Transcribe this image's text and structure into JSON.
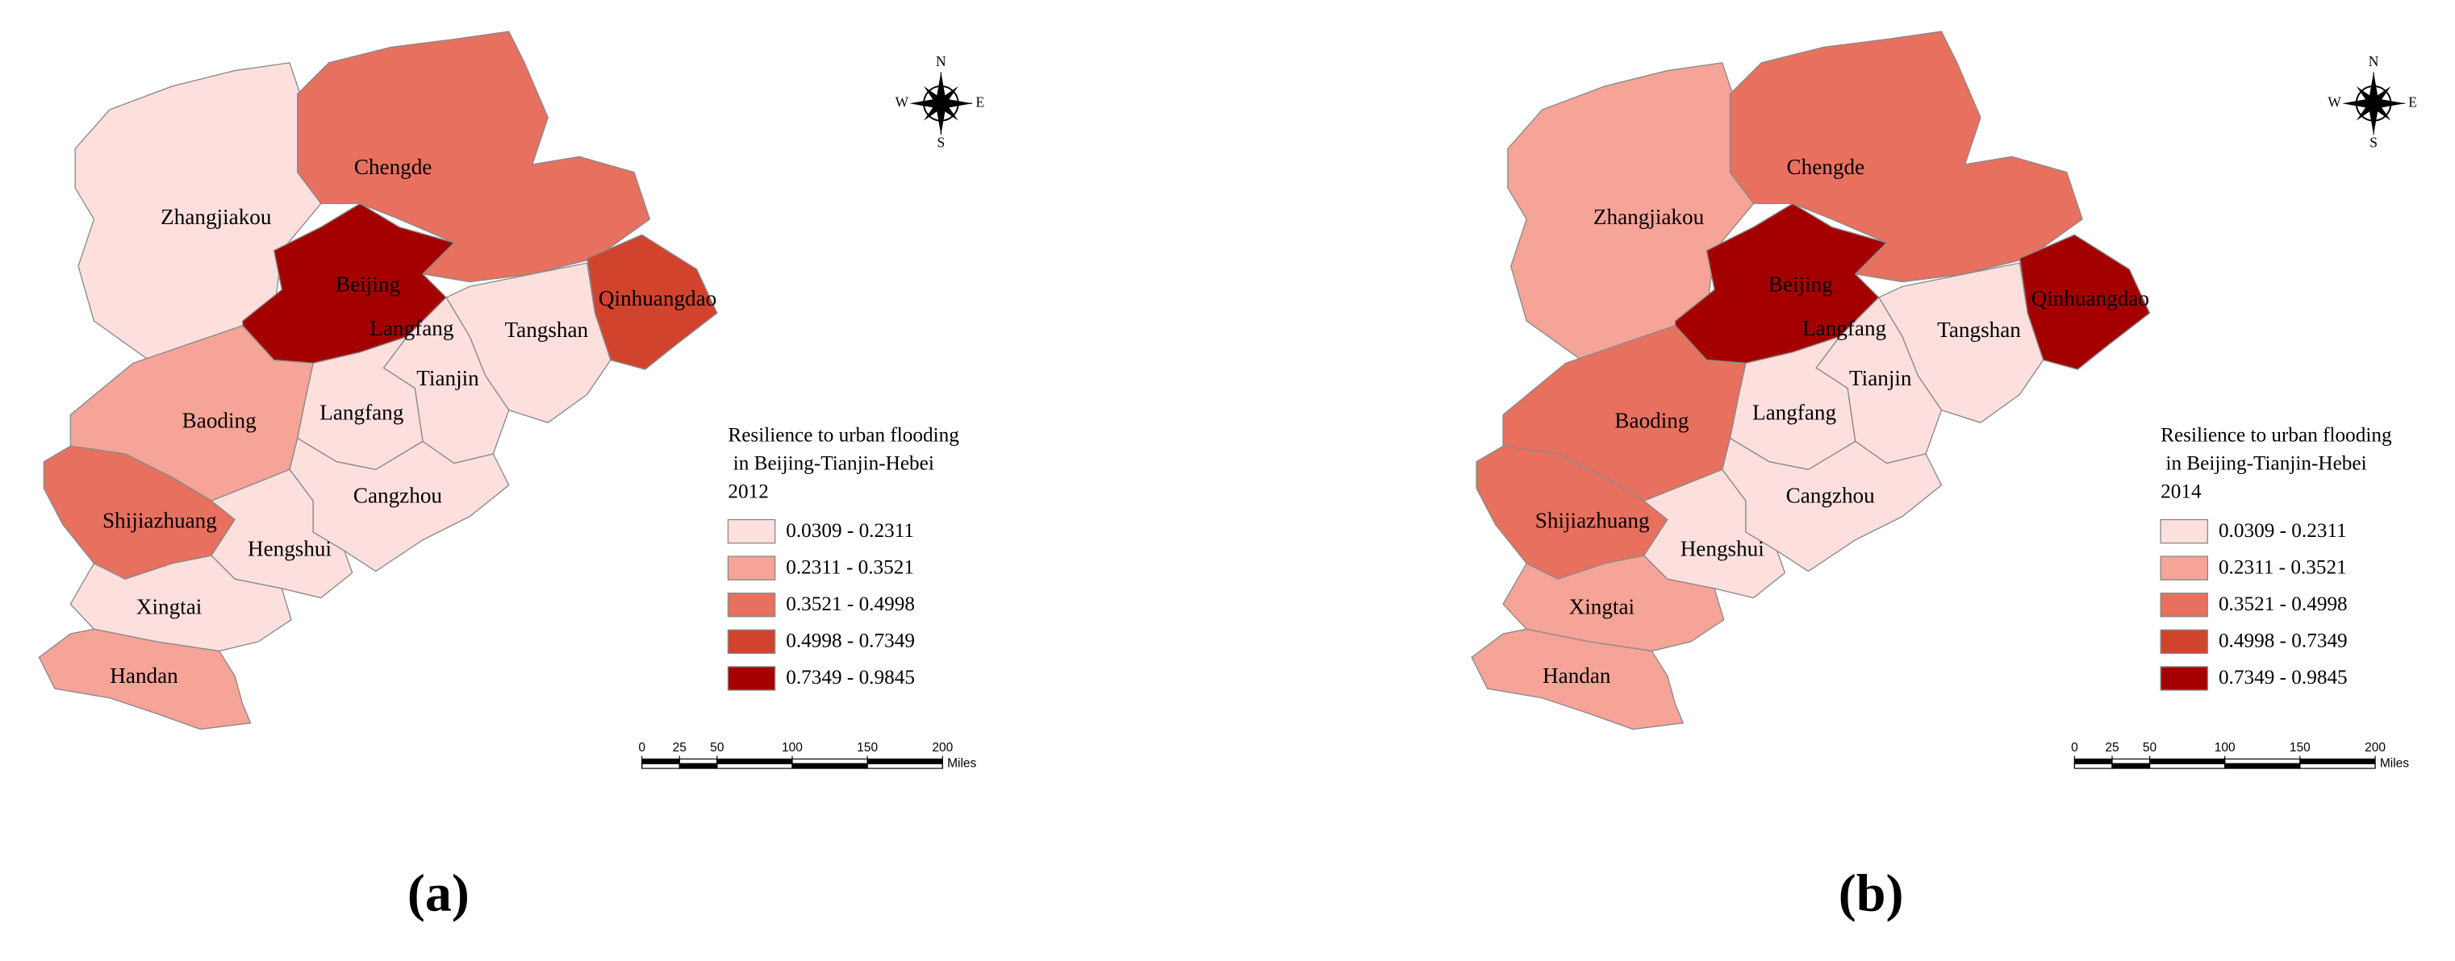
{
  "panels": [
    {
      "caption": "(a)",
      "regions": [
        {
          "name": "Zhangjiakou",
          "color": "#fde0de"
        },
        {
          "name": "Chengde",
          "color": "#e8705f"
        },
        {
          "name": "Beijing",
          "color": "#a50000"
        },
        {
          "name": "Qinhuangdao",
          "color": "#d2432e"
        },
        {
          "name": "Tangshan",
          "color": "#fde0de"
        },
        {
          "name": "Tianjin",
          "color": "#fde0de"
        },
        {
          "name": "Langfang",
          "color": "#fde0de"
        },
        {
          "name": "Baoding",
          "color": "#f6a498"
        },
        {
          "name": "Cangzhou",
          "color": "#fde0de"
        },
        {
          "name": "Shijiazhuang",
          "color": "#e8705f"
        },
        {
          "name": "Hengshui",
          "color": "#fde0de"
        },
        {
          "name": "Xingtai",
          "color": "#fde0de"
        },
        {
          "name": "Handan",
          "color": "#f6a498"
        }
      ],
      "extra_labels": [
        "Langfang"
      ],
      "legend": {
        "title": [
          "Resilience to urban flooding",
          " in Beijing-Tianjin-Hebei",
          "2012"
        ],
        "classes": [
          {
            "label": "0.0309 - 0.2311",
            "color": "#fde0de"
          },
          {
            "label": "0.2311 - 0.3521",
            "color": "#f6a498"
          },
          {
            "label": "0.3521 - 0.4998",
            "color": "#e8705f"
          },
          {
            "label": "0.4998 - 0.7349",
            "color": "#d2432e"
          },
          {
            "label": "0.7349 - 0.9845",
            "color": "#a50000"
          }
        ]
      },
      "scale_bar": {
        "ticks": [
          0,
          25,
          50,
          100,
          150,
          200
        ],
        "unit": "Miles"
      },
      "compass": {
        "n": "N",
        "s": "S",
        "e": "E",
        "w": "W"
      }
    },
    {
      "caption": "(b)",
      "regions": [
        {
          "name": "Zhangjiakou",
          "color": "#f6a498"
        },
        {
          "name": "Chengde",
          "color": "#e8705f"
        },
        {
          "name": "Beijing",
          "color": "#a50000"
        },
        {
          "name": "Qinhuangdao",
          "color": "#a50000"
        },
        {
          "name": "Tangshan",
          "color": "#fde0de"
        },
        {
          "name": "Tianjin",
          "color": "#fde0de"
        },
        {
          "name": "Langfang",
          "color": "#fde0de"
        },
        {
          "name": "Baoding",
          "color": "#e8705f"
        },
        {
          "name": "Cangzhou",
          "color": "#fde0de"
        },
        {
          "name": "Shijiazhuang",
          "color": "#e8705f"
        },
        {
          "name": "Hengshui",
          "color": "#fde0de"
        },
        {
          "name": "Xingtai",
          "color": "#f6a498"
        },
        {
          "name": "Handan",
          "color": "#f6a498"
        }
      ],
      "extra_labels": [
        "Langfang"
      ],
      "legend": {
        "title": [
          "Resilience to urban flooding",
          " in Beijing-Tianjin-Hebei",
          "2014"
        ],
        "classes": [
          {
            "label": "0.0309 - 0.2311",
            "color": "#fde0de"
          },
          {
            "label": "0.2311 - 0.3521",
            "color": "#f6a498"
          },
          {
            "label": "0.3521 - 0.4998",
            "color": "#e8705f"
          },
          {
            "label": "0.4998 - 0.7349",
            "color": "#d2432e"
          },
          {
            "label": "0.7349 - 0.9845",
            "color": "#a50000"
          }
        ]
      },
      "scale_bar": {
        "ticks": [
          0,
          25,
          50,
          100,
          150,
          200
        ],
        "unit": "Miles"
      },
      "compass": {
        "n": "N",
        "s": "S",
        "e": "E",
        "w": "W"
      }
    }
  ]
}
